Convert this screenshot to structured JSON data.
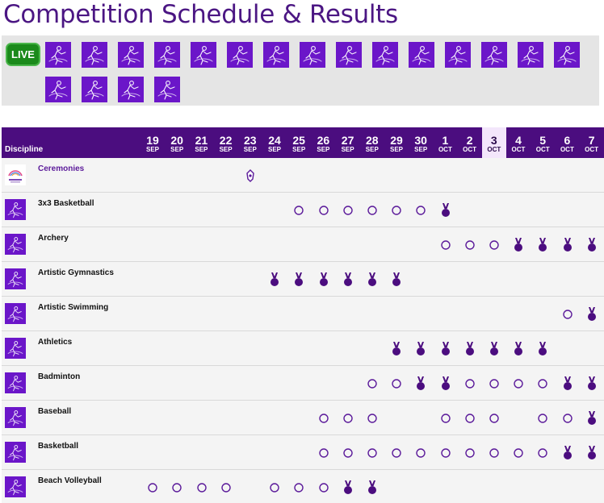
{
  "page": {
    "title": "Competition Schedule & Results"
  },
  "sports_bar": {
    "live_label": "LIVE",
    "tiles": [
      "basketball-3x3-icon",
      "archery-icon",
      "artistic-gymnastics-icon",
      "artistic-swimming-icon",
      "athletics-icon",
      "badminton-icon",
      "baseball-icon",
      "basketball-icon",
      "beach-volleyball-icon",
      "boxing-icon",
      "breaking-icon",
      "bridge-icon",
      "canoe-icon",
      "chess-icon",
      "cricket-icon",
      "cycling-icon",
      "diving-icon",
      "equestrian-icon",
      "esports-icon"
    ]
  },
  "schedule": {
    "discipline_label": "Discipline",
    "today_index": 14,
    "dates": [
      {
        "day": "19",
        "month": "SEP"
      },
      {
        "day": "20",
        "month": "SEP"
      },
      {
        "day": "21",
        "month": "SEP"
      },
      {
        "day": "22",
        "month": "SEP"
      },
      {
        "day": "23",
        "month": "SEP"
      },
      {
        "day": "24",
        "month": "SEP"
      },
      {
        "day": "25",
        "month": "SEP"
      },
      {
        "day": "26",
        "month": "SEP"
      },
      {
        "day": "27",
        "month": "SEP"
      },
      {
        "day": "28",
        "month": "SEP"
      },
      {
        "day": "29",
        "month": "SEP"
      },
      {
        "day": "30",
        "month": "SEP"
      },
      {
        "day": "1",
        "month": "OCT"
      },
      {
        "day": "2",
        "month": "OCT"
      },
      {
        "day": "3",
        "month": "OCT"
      },
      {
        "day": "4",
        "month": "OCT"
      },
      {
        "day": "5",
        "month": "OCT"
      },
      {
        "day": "6",
        "month": "OCT"
      },
      {
        "day": "7",
        "month": "OCT"
      }
    ],
    "legend_keys": {
      "o": "competition",
      "m": "medal-event",
      "c": "ceremony"
    },
    "events": [
      {
        "name": "Ceremonies",
        "icon": "ceremonies-logo-icon",
        "marks": "....c.............."
      },
      {
        "name": "3x3 Basketball",
        "icon": "basketball-3x3-icon",
        "marks": "......oooooom......"
      },
      {
        "name": "Archery",
        "icon": "archery-icon",
        "marks": "............ooommmm"
      },
      {
        "name": "Artistic Gymnastics",
        "icon": "artistic-gymnastics-icon",
        "marks": ".....mmmmmm........"
      },
      {
        "name": "Artistic Swimming",
        "icon": "artistic-swimming-icon",
        "marks": ".................om"
      },
      {
        "name": "Athletics",
        "icon": "athletics-icon",
        "marks": "..........mmmmmmm.."
      },
      {
        "name": "Badminton",
        "icon": "badminton-icon",
        "marks": ".........oommoooomm"
      },
      {
        "name": "Baseball",
        "icon": "baseball-icon",
        "marks": ".......ooo..ooo.oom"
      },
      {
        "name": "Basketball",
        "icon": "basketball-icon",
        "marks": ".......oooooooooomm"
      },
      {
        "name": "Beach Volleyball",
        "icon": "beach-volleyball-icon",
        "marks": "oooo.ooomm........."
      }
    ]
  }
}
